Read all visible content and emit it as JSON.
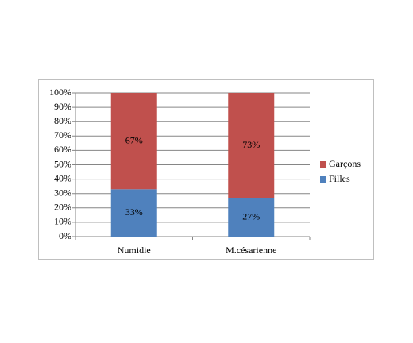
{
  "chart_data": {
    "type": "stacked-bar",
    "categories": [
      "Numidie",
      "M.césarienne"
    ],
    "series": [
      {
        "name": "Filles",
        "color": "#4f81bd",
        "values": [
          33,
          27
        ],
        "value_labels": [
          "33%",
          "27%"
        ]
      },
      {
        "name": "Garçons",
        "color": "#c0504d",
        "values": [
          67,
          73
        ],
        "value_labels": [
          "67%",
          "73%"
        ]
      }
    ],
    "ylim": [
      0,
      100
    ],
    "yticks": [
      {
        "value": 0,
        "label": "0%"
      },
      {
        "value": 10,
        "label": "10%"
      },
      {
        "value": 20,
        "label": "20%"
      },
      {
        "value": 30,
        "label": "30%"
      },
      {
        "value": 40,
        "label": "40%"
      },
      {
        "value": 50,
        "label": "50%"
      },
      {
        "value": 60,
        "label": "60%"
      },
      {
        "value": 70,
        "label": "70%"
      },
      {
        "value": 80,
        "label": "80%"
      },
      {
        "value": 90,
        "label": "90%"
      },
      {
        "value": 100,
        "label": "100%"
      }
    ],
    "grid": true,
    "legend": "right"
  }
}
